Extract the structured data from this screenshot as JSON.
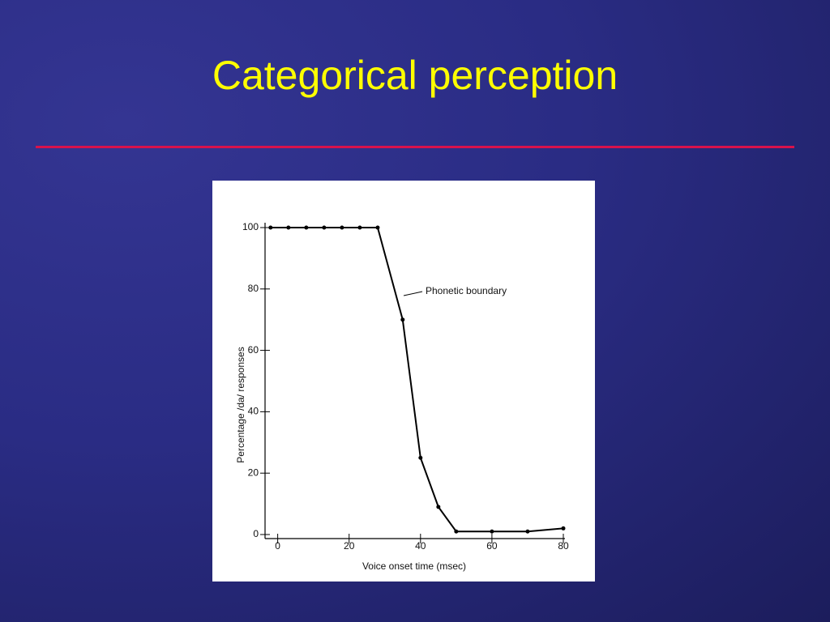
{
  "slide": {
    "title": "Categorical perception"
  },
  "chart_data": {
    "type": "line",
    "x_label": "Voice onset time (msec)",
    "y_label": "Percentage /da/ responses",
    "annotation": "Phonetic boundary",
    "x": [
      -2,
      3,
      8,
      13,
      18,
      23,
      28,
      35,
      40,
      45,
      50,
      60,
      70,
      80
    ],
    "values": [
      100,
      100,
      100,
      100,
      100,
      100,
      100,
      70,
      25,
      9,
      1,
      1,
      1,
      2
    ],
    "color": "#000000",
    "xlim": [
      -4,
      80
    ],
    "xticks": [
      0,
      20,
      40,
      60,
      80
    ],
    "ylim": [
      0,
      100
    ],
    "yticks": [
      0,
      20,
      40,
      60,
      80,
      100
    ],
    "grid": false
  }
}
